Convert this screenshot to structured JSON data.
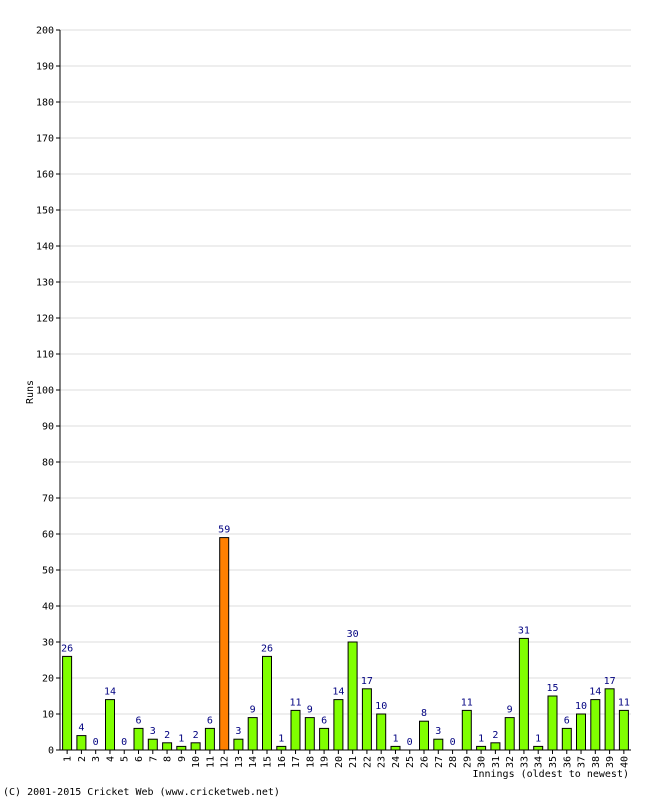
{
  "chart_data": {
    "type": "bar",
    "categories": [
      "1",
      "2",
      "3",
      "4",
      "5",
      "6",
      "7",
      "8",
      "9",
      "10",
      "11",
      "12",
      "13",
      "14",
      "15",
      "16",
      "17",
      "18",
      "19",
      "20",
      "21",
      "22",
      "23",
      "24",
      "25",
      "26",
      "27",
      "28",
      "29",
      "30",
      "31",
      "32",
      "33",
      "34",
      "35",
      "36",
      "37",
      "38",
      "39",
      "40"
    ],
    "values": [
      26,
      4,
      0,
      14,
      0,
      6,
      3,
      2,
      1,
      2,
      6,
      59,
      3,
      9,
      26,
      1,
      11,
      9,
      6,
      14,
      30,
      17,
      10,
      1,
      0,
      8,
      3,
      0,
      11,
      1,
      2,
      9,
      31,
      1,
      15,
      6,
      10,
      14,
      17,
      11
    ],
    "highlight_index": 11,
    "xlabel": "Innings (oldest to newest)",
    "ylabel": "Runs",
    "ylim": [
      0,
      200
    ],
    "ytick_step": 10,
    "grid": true,
    "colors": {
      "bar": "#80ff00",
      "highlight_bar": "#ff8000",
      "bar_stroke": "#000000",
      "value_label": "#000080",
      "grid": "#dddddd",
      "axis": "#000000"
    }
  },
  "footer": {
    "copyright": "(C) 2001-2015 Cricket Web (www.cricketweb.net)"
  }
}
